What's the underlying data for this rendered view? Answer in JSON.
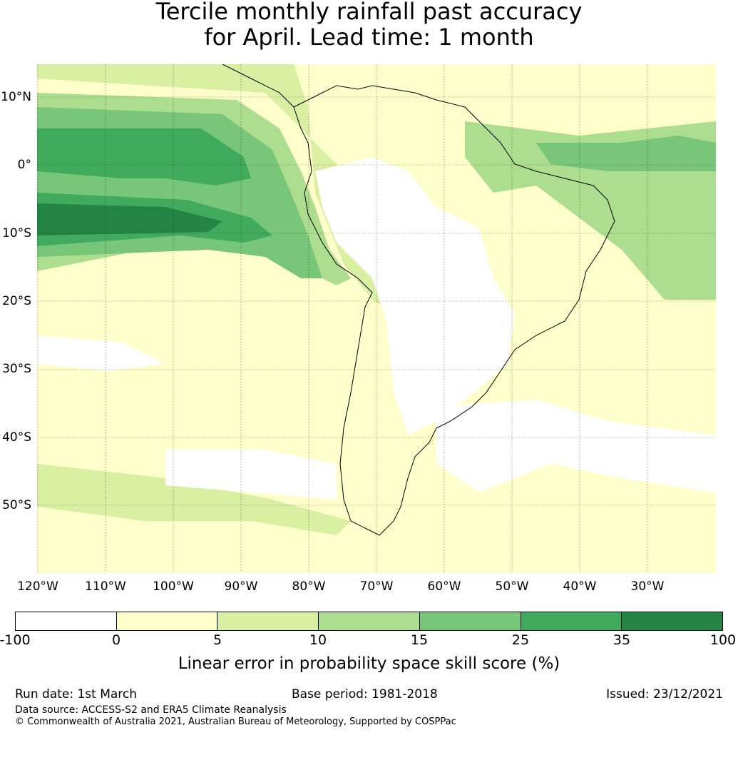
{
  "title": {
    "line1": "Tercile monthly rainfall past accuracy",
    "line2": "for April. Lead time: 1 month"
  },
  "map": {
    "lat_labels": [
      "10°N",
      "0°",
      "10°S",
      "20°S",
      "30°S",
      "40°S",
      "50°S"
    ],
    "lon_labels": [
      "120°W",
      "110°W",
      "100°W",
      "90°W",
      "80°W",
      "70°W",
      "60°W",
      "50°W",
      "40°W",
      "30°W"
    ]
  },
  "colorbar": {
    "ticks": [
      "-100",
      "0",
      "5",
      "10",
      "15",
      "25",
      "35",
      "100"
    ],
    "colors": [
      "#ffffff",
      "#ffffcc",
      "#d9f0a3",
      "#addd8e",
      "#78c679",
      "#41ab5d",
      "#238443"
    ],
    "label": "Linear error in probability space skill score (%)"
  },
  "footer": {
    "run_date": "Run date: 1st March",
    "base_period": "Base period: 1981-2018",
    "issued": "Issued: 23/12/2021",
    "data_source": "Data source: ACCESS-S2 and ERA5 Climate Reanalysis",
    "copyright": "© Commonwealth of Australia 2021, Australian Bureau of Meteorology, Supported by COSPPac"
  }
}
